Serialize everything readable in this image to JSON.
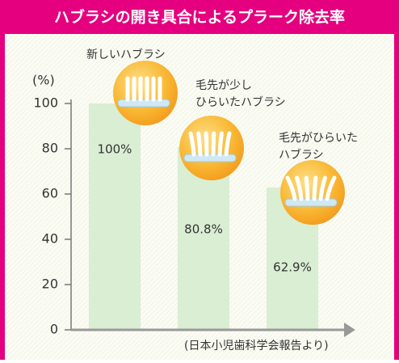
{
  "chart_data": {
    "type": "bar",
    "title": "ハブラシの開き具合によるプラーク除去率",
    "y_label": "(%)",
    "source": "(日本小児歯科学会報告より)",
    "categories": [
      [
        "新しいハブラシ"
      ],
      [
        "毛先が少し",
        "ひらいたハブラシ"
      ],
      [
        "毛先がひらいた",
        "ハブラシ"
      ]
    ],
    "values": [
      100,
      80.8,
      62.9
    ],
    "value_labels": [
      "100%",
      "80.8%",
      "62.9%"
    ],
    "color": "#d9eed3",
    "ylim": [
      0,
      100
    ],
    "yticks": [
      0,
      20,
      40,
      60,
      80,
      100
    ]
  }
}
